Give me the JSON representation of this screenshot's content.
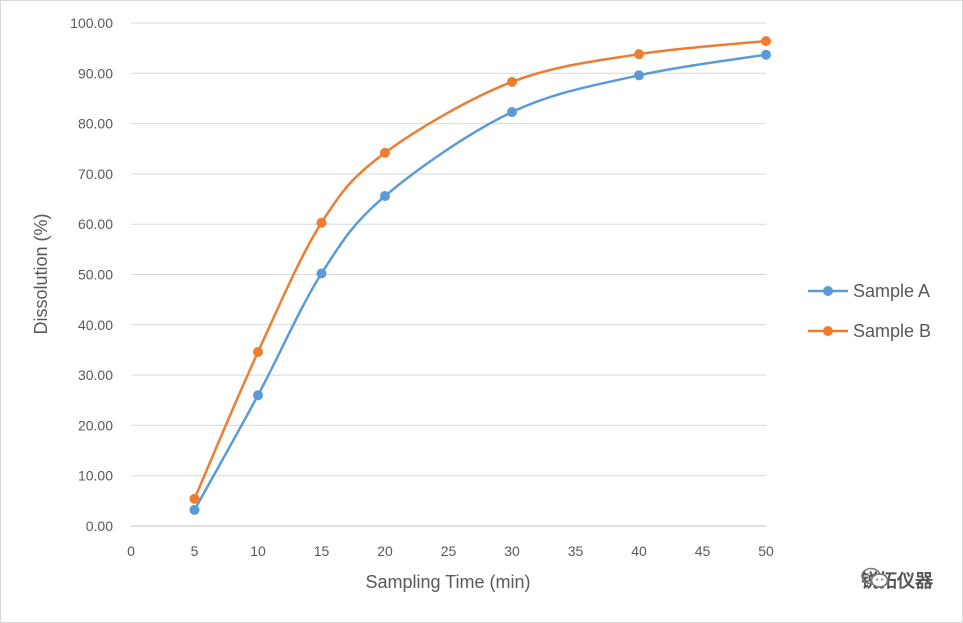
{
  "chart_data": {
    "type": "line",
    "title": "",
    "xlabel": "Sampling Time (min)",
    "ylabel": "Dissolution (%)",
    "xlim": [
      0,
      50
    ],
    "ylim": [
      0,
      100
    ],
    "x_ticks": [
      "0",
      "5",
      "10",
      "15",
      "20",
      "25",
      "30",
      "35",
      "40",
      "45",
      "50"
    ],
    "y_ticks": [
      "0.00",
      "10.00",
      "20.00",
      "30.00",
      "40.00",
      "50.00",
      "60.00",
      "70.00",
      "80.00",
      "90.00",
      "100.00"
    ],
    "grid": true,
    "legend_position": "right",
    "series": [
      {
        "name": "Sample A",
        "color": "#5b9bd5",
        "x": [
          5,
          10,
          15,
          20,
          30,
          40,
          50
        ],
        "values": [
          3.2,
          26.0,
          50.2,
          65.6,
          82.3,
          89.6,
          93.7
        ]
      },
      {
        "name": "Sample B",
        "color": "#ed7d31",
        "x": [
          5,
          10,
          15,
          20,
          30,
          40,
          50
        ],
        "values": [
          5.4,
          34.6,
          60.3,
          74.2,
          88.3,
          93.8,
          96.4
        ]
      }
    ]
  },
  "watermark": {
    "text": "锐拓仪器",
    "icon": "wechat-icon"
  }
}
